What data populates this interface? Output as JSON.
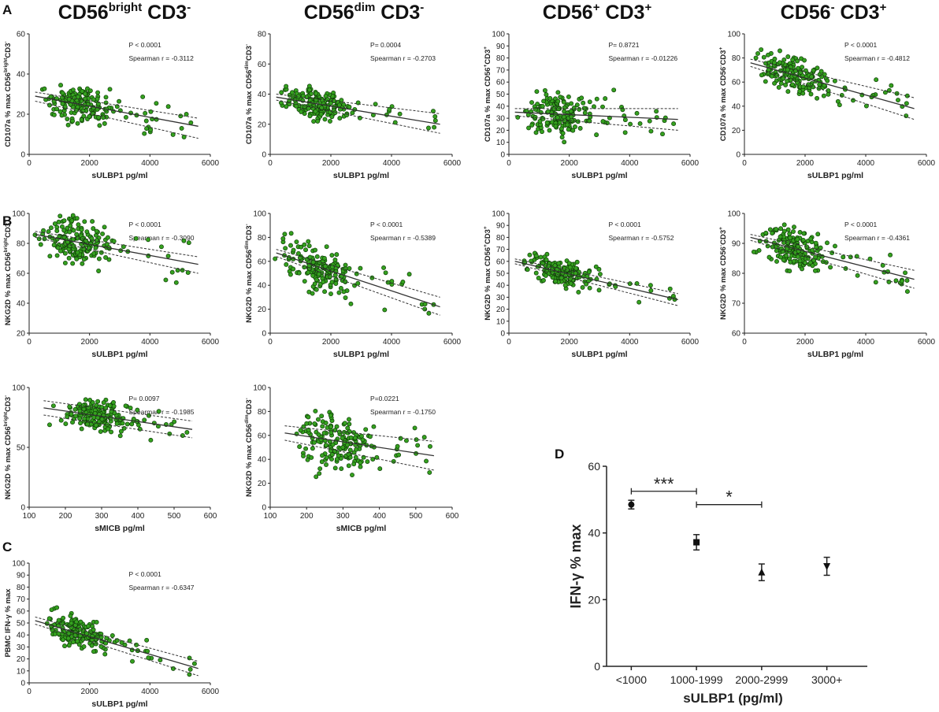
{
  "colors": {
    "point_fill": "#35a11f",
    "point_stroke": "#0f3d08",
    "line": "#333333",
    "axis": "#222222"
  },
  "column_titles": [
    {
      "base": "CD56",
      "sup1": "bright",
      "mid": " CD3",
      "sup2": "-"
    },
    {
      "base": "CD56",
      "sup1": "dim",
      "mid": " CD3",
      "sup2": "-"
    },
    {
      "base": "CD56",
      "sup1": "+",
      "mid": " CD3",
      "sup2": "+"
    },
    {
      "base": "CD56",
      "sup1": "-",
      "mid": " CD3",
      "sup2": "+"
    }
  ],
  "panel_labels": {
    "A": "A",
    "B": "B",
    "C": "C",
    "D": "D"
  },
  "chart_data": [
    {
      "id": "A1",
      "type": "scatter",
      "title": "CD56bright CD3-",
      "xlabel": "sULBP1 pg/ml",
      "ylabel": [
        "CD107a % max CD56",
        "bright",
        "CD3",
        "-"
      ],
      "xlim": [
        0,
        6000
      ],
      "ylim": [
        0,
        60
      ],
      "xticks": [
        0,
        2000,
        4000,
        6000
      ],
      "yticks": [
        0,
        20,
        40,
        60
      ],
      "p": "P < 0.0001",
      "r": "Spearman r = -0.3112",
      "fit": {
        "x": [
          200,
          5600
        ],
        "y": [
          29,
          14
        ],
        "ci_hi": [
          31,
          18
        ],
        "ci_lo": [
          26.5,
          8
        ]
      },
      "n": 180,
      "seed": 11,
      "x_center": 1500,
      "x_max": 5600,
      "resid": 7
    },
    {
      "id": "A2",
      "type": "scatter",
      "title": "CD56dim CD3-",
      "xlabel": "sULBP1 pg/ml",
      "ylabel": [
        "CD107a % max CD56",
        "dim",
        "CD3",
        "-"
      ],
      "xlim": [
        0,
        6000
      ],
      "ylim": [
        0,
        80
      ],
      "xticks": [
        0,
        2000,
        4000,
        6000
      ],
      "yticks": [
        0,
        20,
        40,
        60,
        80
      ],
      "p": "P= 0.0004",
      "r": "Spearman r = -0.2703",
      "fit": {
        "x": [
          200,
          5600
        ],
        "y": [
          38,
          20
        ],
        "ci_hi": [
          40,
          27
        ],
        "ci_lo": [
          36,
          14
        ]
      },
      "n": 190,
      "seed": 22,
      "x_center": 1500,
      "x_max": 5500,
      "resid": 8
    },
    {
      "id": "A3",
      "type": "scatter",
      "title": "CD56+ CD3+",
      "xlabel": "sULBP1 pg/ml",
      "ylabel": [
        "CD107a % max CD56",
        "+",
        "CD3",
        "+"
      ],
      "xlim": [
        0,
        6000
      ],
      "ylim": [
        0,
        100
      ],
      "xticks": [
        0,
        2000,
        4000,
        6000
      ],
      "yticks": [
        0,
        10,
        20,
        30,
        40,
        50,
        60,
        70,
        80,
        90,
        100
      ],
      "p": "P= 0.8721",
      "r": "Spearman r = -0.01226",
      "fit": {
        "x": [
          200,
          5600
        ],
        "y": [
          35,
          29
        ],
        "ci_hi": [
          38,
          38
        ],
        "ci_lo": [
          32,
          20
        ]
      },
      "n": 190,
      "seed": 33,
      "x_center": 1500,
      "x_max": 5500,
      "resid": 13
    },
    {
      "id": "A4",
      "type": "scatter",
      "title": "CD56- CD3+",
      "xlabel": "sULBP1 pg/ml",
      "ylabel": [
        "CD107a % max CD56",
        "-",
        "CD3",
        "+"
      ],
      "xlim": [
        0,
        6000
      ],
      "ylim": [
        0,
        100
      ],
      "xticks": [
        0,
        2000,
        4000,
        6000
      ],
      "yticks": [
        0,
        20,
        40,
        60,
        80,
        100
      ],
      "p": "P < 0.0001",
      "r": "Spearman r = -0.4812",
      "fit": {
        "x": [
          200,
          5600
        ],
        "y": [
          76,
          38
        ],
        "ci_hi": [
          79,
          47
        ],
        "ci_lo": [
          73,
          29
        ]
      },
      "n": 190,
      "seed": 44,
      "x_center": 1500,
      "x_max": 5500,
      "resid": 11
    },
    {
      "id": "B1",
      "type": "scatter",
      "xlabel": "sULBP1 pg/ml",
      "ylabel": [
        "NKG2D % max CD56",
        "bright",
        "CD3",
        "-"
      ],
      "xlim": [
        0,
        6000
      ],
      "ylim": [
        20,
        100
      ],
      "xticks": [
        0,
        2000,
        4000,
        6000
      ],
      "yticks": [
        20,
        40,
        60,
        80,
        100
      ],
      "p": "P < 0.0001",
      "r": "Spearman r = -0.3090",
      "fit": {
        "x": [
          200,
          5600
        ],
        "y": [
          86,
          66
        ],
        "ci_hi": [
          88,
          71
        ],
        "ci_lo": [
          84,
          60
        ]
      },
      "n": 190,
      "seed": 55,
      "x_center": 1500,
      "x_max": 5300,
      "resid": 11
    },
    {
      "id": "B2",
      "type": "scatter",
      "xlabel": "sULBP1 pg/ml",
      "ylabel": [
        "NKG2D % max CD56",
        "dim",
        "CD3",
        "-"
      ],
      "xlim": [
        0,
        6000
      ],
      "ylim": [
        0,
        100
      ],
      "xticks": [
        0,
        2000,
        4000,
        6000
      ],
      "yticks": [
        0,
        20,
        40,
        60,
        80,
        100
      ],
      "p": "P < 0.0001",
      "r": "Spearman r = -0.5389",
      "fit": {
        "x": [
          200,
          5600
        ],
        "y": [
          67,
          22
        ],
        "ci_hi": [
          70,
          30
        ],
        "ci_lo": [
          64,
          15
        ]
      },
      "n": 190,
      "seed": 66,
      "x_center": 1500,
      "x_max": 5500,
      "resid": 14
    },
    {
      "id": "B3",
      "type": "scatter",
      "xlabel": "sULBP1 pg/ml",
      "ylabel": [
        "NKG2D % max CD56",
        "+",
        "CD3",
        "+"
      ],
      "xlim": [
        0,
        6000
      ],
      "ylim": [
        0,
        100
      ],
      "xticks": [
        0,
        2000,
        4000,
        6000
      ],
      "yticks": [
        0,
        10,
        20,
        30,
        40,
        50,
        60,
        70,
        80,
        90,
        100
      ],
      "p": "P < 0.0001",
      "r": "Spearman r = -0.5752",
      "fit": {
        "x": [
          200,
          5600
        ],
        "y": [
          60,
          28
        ],
        "ci_hi": [
          62,
          33
        ],
        "ci_lo": [
          58,
          23
        ]
      },
      "n": 200,
      "seed": 77,
      "x_center": 1500,
      "x_max": 5500,
      "resid": 8
    },
    {
      "id": "B4",
      "type": "scatter",
      "xlabel": "sULBP1 pg/ml",
      "ylabel": [
        "NKG2D % max CD56",
        "-",
        "CD3",
        "+"
      ],
      "xlim": [
        0,
        6000
      ],
      "ylim": [
        60,
        100
      ],
      "xticks": [
        0,
        2000,
        4000,
        6000
      ],
      "yticks": [
        60,
        70,
        80,
        90,
        100
      ],
      "p": "P < 0.0001",
      "r": "Spearman r = -0.4361",
      "fit": {
        "x": [
          200,
          5600
        ],
        "y": [
          92,
          78
        ],
        "ci_hi": [
          93,
          81
        ],
        "ci_lo": [
          91,
          75
        ]
      },
      "n": 190,
      "seed": 88,
      "x_center": 1500,
      "x_max": 5500,
      "resid": 5
    },
    {
      "id": "B5",
      "type": "scatter",
      "xlabel": "sMICB pg/ml",
      "ylabel": [
        "NKG2D % max CD56",
        "bright",
        "CD3",
        "-"
      ],
      "xlim": [
        100,
        600
      ],
      "ylim": [
        0,
        100
      ],
      "xticks": [
        100,
        200,
        300,
        400,
        500,
        600
      ],
      "yticks": [
        0,
        50,
        100
      ],
      "p": "P= 0.0097",
      "r": "Spearman r = -0.1985",
      "fit": {
        "x": [
          140,
          550
        ],
        "y": [
          83,
          65
        ],
        "ci_hi": [
          89,
          72
        ],
        "ci_lo": [
          77,
          58
        ]
      },
      "n": 190,
      "seed": 99,
      "x_center": 280,
      "x_max": 545,
      "x_min": 140,
      "resid": 11
    },
    {
      "id": "B6",
      "type": "scatter",
      "xlabel": "sMICB pg/ml",
      "ylabel": [
        "NKG2D % max CD56",
        "dim",
        "CD3",
        "-"
      ],
      "xlim": [
        100,
        600
      ],
      "ylim": [
        0,
        100
      ],
      "xticks": [
        100,
        200,
        300,
        400,
        500,
        600
      ],
      "yticks": [
        0,
        20,
        40,
        60,
        80,
        100
      ],
      "p": "P=0.0221",
      "r": "Spearman r = -0.1750",
      "fit": {
        "x": [
          140,
          550
        ],
        "y": [
          62,
          43
        ],
        "ci_hi": [
          68,
          55
        ],
        "ci_lo": [
          56,
          31
        ]
      },
      "n": 190,
      "seed": 111,
      "x_center": 280,
      "x_max": 545,
      "x_min": 140,
      "resid": 18
    },
    {
      "id": "C",
      "type": "scatter",
      "xlabel": "sULBP1 pg/ml",
      "ylabel": [
        "PBMC IFN-γ % max",
        "",
        "",
        ""
      ],
      "xlim": [
        0,
        6000
      ],
      "ylim": [
        0,
        100
      ],
      "xticks": [
        0,
        2000,
        4000,
        6000
      ],
      "yticks": [
        0,
        10,
        20,
        30,
        40,
        50,
        60,
        70,
        80,
        90,
        100
      ],
      "p": "P < 0.0001",
      "r": "Spearman r = -0.6347",
      "fit": {
        "x": [
          200,
          5600
        ],
        "y": [
          52,
          12
        ],
        "ci_hi": [
          55,
          18
        ],
        "ci_lo": [
          49,
          6
        ]
      },
      "n": 180,
      "seed": 123,
      "x_center": 1500,
      "x_max": 5500,
      "resid": 10
    },
    {
      "id": "D",
      "type": "errorbar",
      "xlabel": "sULBP1 (pg/ml)",
      "ylabel": "IFN-γ % max",
      "categories": [
        "<1000",
        "1000-1999",
        "2000-2999",
        "3000+"
      ],
      "means": [
        48.5,
        37.2,
        28.2,
        30.0
      ],
      "sem": [
        1.3,
        2.3,
        2.5,
        2.7
      ],
      "markers": [
        "circle",
        "square",
        "triangle-up",
        "triangle-down"
      ],
      "ylim": [
        0,
        60
      ],
      "yticks": [
        0,
        20,
        40,
        60
      ],
      "significance": [
        {
          "from": 0,
          "to": 1,
          "label": "***",
          "y": 52.5
        },
        {
          "from": 1,
          "to": 2,
          "label": "*",
          "y": 48.5
        }
      ]
    }
  ]
}
